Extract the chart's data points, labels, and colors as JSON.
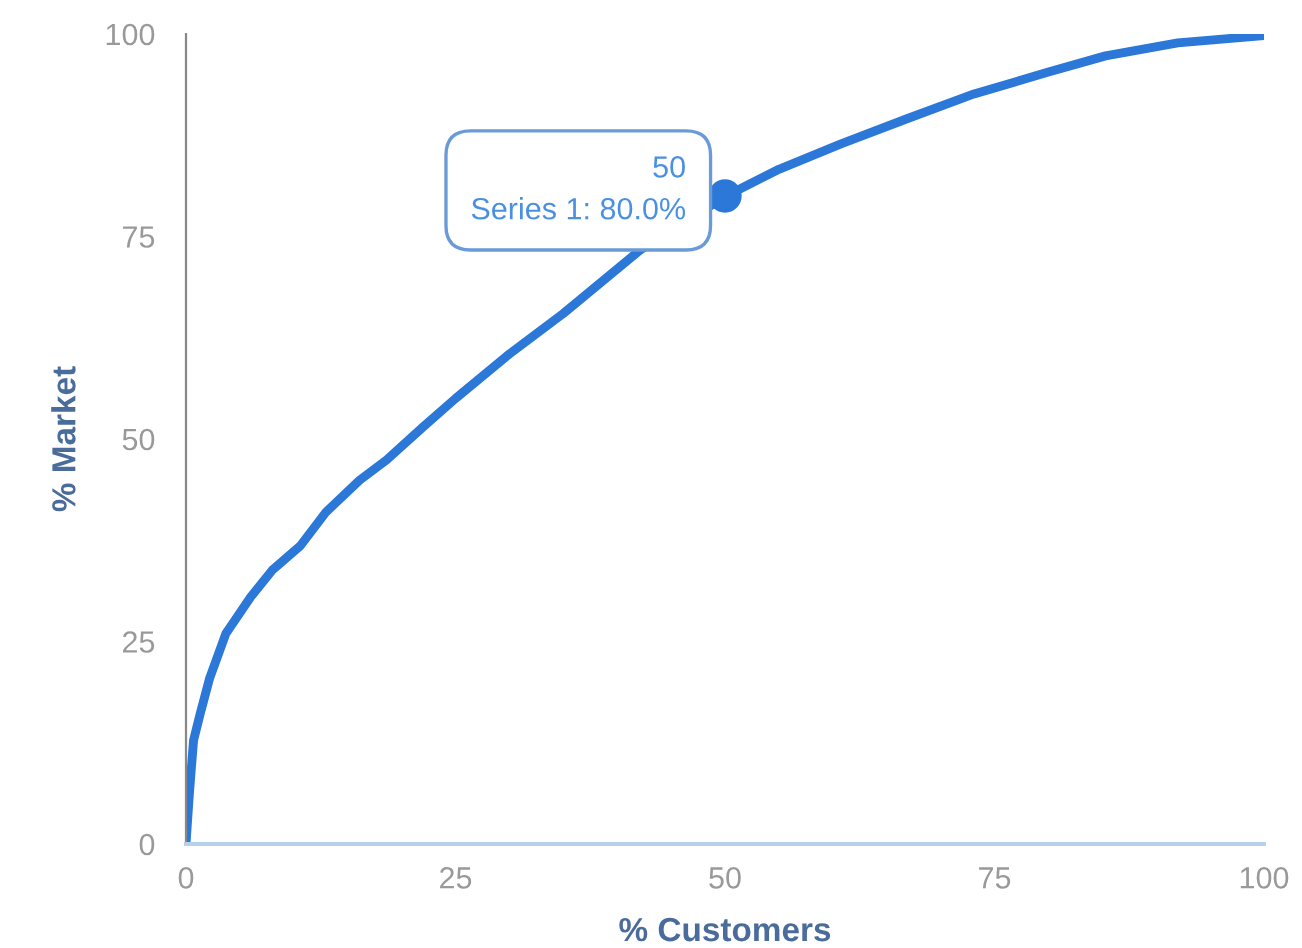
{
  "chart_data": {
    "type": "line",
    "xlabel": "% Customers",
    "ylabel": "% Market",
    "series": [
      {
        "color": "#2b78d8",
        "x": [
          0,
          0.3,
          0.7,
          1.3,
          2.2,
          3.7,
          6,
          8,
          10.6,
          13,
          16.1,
          18.6,
          22,
          25,
          30,
          35,
          42.1,
          50.1,
          55,
          60.7,
          67,
          73.1,
          80,
          85.3,
          92,
          100
        ],
        "values": [
          0,
          6,
          12.8,
          16,
          20.5,
          26,
          30.5,
          33.8,
          36.8,
          41,
          44.9,
          47.4,
          51.5,
          55,
          60.5,
          65.5,
          73.3,
          80,
          83.3,
          86.4,
          89.6,
          92.6,
          95.3,
          97.3,
          98.9,
          99.8
        ]
      }
    ],
    "annotations": [
      {
        "text": "50\nSeries 1: 80.0%",
        "x": 50,
        "y": 80
      }
    ],
    "xlim": [
      0,
      100
    ],
    "ylim": [
      0,
      100
    ],
    "xticks": [
      0,
      25,
      50,
      75,
      100
    ],
    "yticks": [
      0,
      25,
      50,
      75,
      100
    ],
    "grid": false,
    "legend": false,
    "marker": "none",
    "line_style": "solid"
  }
}
